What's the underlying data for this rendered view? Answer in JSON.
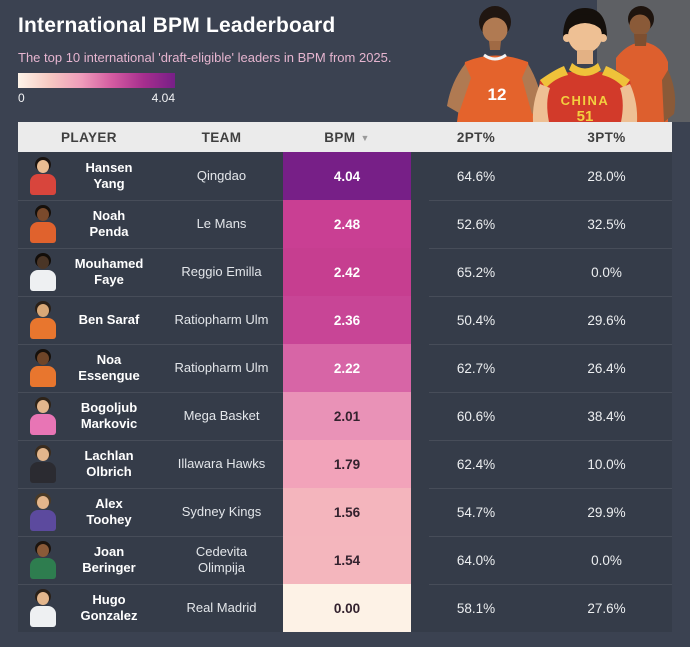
{
  "header": {
    "title": "International BPM Leaderboard",
    "subtitle": "The top 10 international 'draft-eligible' leaders in BPM from 2025."
  },
  "scale": {
    "min_label": "0",
    "max_label": "4.04",
    "gradient": [
      "#fdf3e8",
      "#f6c9c2",
      "#ef9dbb",
      "#d45ba1",
      "#a62e8e",
      "#771f87"
    ]
  },
  "hero": {
    "left_jersey_number": "12",
    "middle_jersey_text": "CHINA",
    "middle_jersey_number": "51"
  },
  "chart_data": {
    "type": "table",
    "title": "International BPM Leaderboard",
    "columns": [
      "PLAYER",
      "TEAM",
      "BPM",
      "2PT%",
      "3PT%"
    ],
    "sort_column": "BPM",
    "sort_icon": "▼",
    "color_scale": {
      "min": 0,
      "max": 4.04
    },
    "rows": [
      {
        "player": "Hansen\nYang",
        "team": "Qingdao",
        "bpm": "4.04",
        "pt2": "64.6%",
        "pt3": "28.0%",
        "bpm_bg": "#771f87",
        "bpm_text": "#ffffff",
        "avatar": {
          "jersey": "#d8453c",
          "skin": "#e9bd92",
          "hair": "#1a1410"
        }
      },
      {
        "player": "Noah\nPenda",
        "team": "Le Mans",
        "bpm": "2.48",
        "pt2": "52.6%",
        "pt3": "32.5%",
        "bpm_bg": "#c93f93",
        "bpm_text": "#ffffff",
        "avatar": {
          "jersey": "#e0622d",
          "skin": "#7a4a2c",
          "hair": "#16100b"
        }
      },
      {
        "player": "Mouhamed\nFaye",
        "team": "Reggio Emilla",
        "bpm": "2.42",
        "pt2": "65.2%",
        "pt3": "0.0%",
        "bpm_bg": "#c63e90",
        "bpm_text": "#ffffff",
        "avatar": {
          "jersey": "#eef0f2",
          "skin": "#4a3526",
          "hair": "#120d09"
        }
      },
      {
        "player": "Ben Saraf",
        "team": "Ratiopharm Ulm",
        "bpm": "2.36",
        "pt2": "50.4%",
        "pt3": "29.6%",
        "bpm_bg": "#c84596",
        "bpm_text": "#ffffff",
        "avatar": {
          "jersey": "#e8762e",
          "skin": "#d9a877",
          "hair": "#2a2018"
        }
      },
      {
        "player": "Noa\nEssengue",
        "team": "Ratiopharm Ulm",
        "bpm": "2.22",
        "pt2": "62.7%",
        "pt3": "26.4%",
        "bpm_bg": "#d765a6",
        "bpm_text": "#ffffff",
        "avatar": {
          "jersey": "#e8762e",
          "skin": "#6f4528",
          "hair": "#16100b"
        }
      },
      {
        "player": "Bogoljub\nMarkovic",
        "team": "Mega Basket",
        "bpm": "2.01",
        "pt2": "60.6%",
        "pt3": "38.4%",
        "bpm_bg": "#e992b7",
        "bpm_text": "#33222e",
        "avatar": {
          "jersey": "#e875b5",
          "skin": "#e3b68c",
          "hair": "#2e2318"
        }
      },
      {
        "player": "Lachlan\nOlbrich",
        "team": "Illawara Hawks",
        "bpm": "1.79",
        "pt2": "62.4%",
        "pt3": "10.0%",
        "bpm_bg": "#f2a3ba",
        "bpm_text": "#33222e",
        "avatar": {
          "jersey": "#2b2b31",
          "skin": "#e3b68c",
          "hair": "#3a2c1e"
        }
      },
      {
        "player": "Alex\nToohey",
        "team": "Sydney Kings",
        "bpm": "1.56",
        "pt2": "54.7%",
        "pt3": "29.9%",
        "bpm_bg": "#f4b5bd",
        "bpm_text": "#33222e",
        "avatar": {
          "jersey": "#5c4a9e",
          "skin": "#e3b68c",
          "hair": "#4a3a26"
        }
      },
      {
        "player": "Joan\nBeringer",
        "team": "Cedevita\nOlimpija",
        "bpm": "1.54",
        "pt2": "64.0%",
        "pt3": "0.0%",
        "bpm_bg": "#f4b6bd",
        "bpm_text": "#33222e",
        "avatar": {
          "jersey": "#2e7d4f",
          "skin": "#8a5a38",
          "hair": "#1c140e"
        }
      },
      {
        "player": "Hugo\nGonzalez",
        "team": "Real Madrid",
        "bpm": "0.00",
        "pt2": "58.1%",
        "pt3": "27.6%",
        "bpm_bg": "#fdf2e6",
        "bpm_text": "#33222e",
        "avatar": {
          "jersey": "#eef0f2",
          "skin": "#e3b68c",
          "hair": "#2a2018"
        }
      }
    ]
  }
}
